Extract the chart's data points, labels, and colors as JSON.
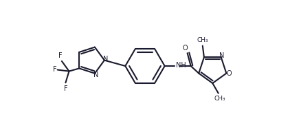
{
  "background_color": "#ffffff",
  "line_color": "#1a1a2e",
  "text_color": "#1a1a2e",
  "figsize": [
    4.22,
    1.92
  ],
  "dpi": 100,
  "xlim": [
    0,
    100
  ],
  "ylim": [
    0,
    46
  ]
}
